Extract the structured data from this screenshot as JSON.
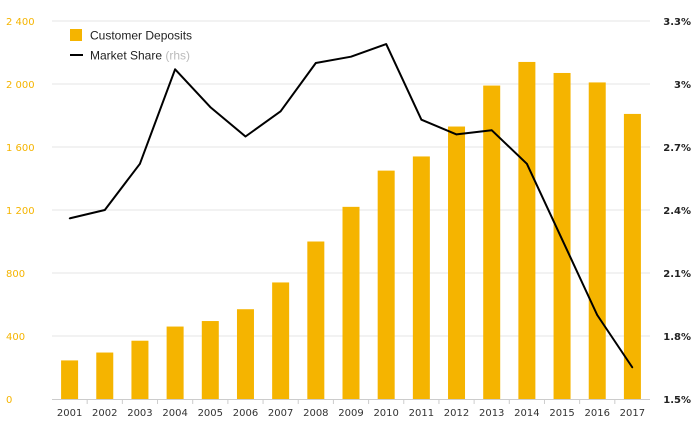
{
  "chart_data": {
    "type": "bar",
    "categories": [
      "2001",
      "2002",
      "2003",
      "2004",
      "2005",
      "2006",
      "2007",
      "2008",
      "2009",
      "2010",
      "2011",
      "2012",
      "2013",
      "2014",
      "2015",
      "2016",
      "2017"
    ],
    "series": [
      {
        "name": "Customer Deposits",
        "type": "bar",
        "axis": "left",
        "color": "#f5b400",
        "values": [
          245,
          295,
          370,
          460,
          495,
          570,
          740,
          1000,
          1220,
          1450,
          1540,
          1730,
          1990,
          2140,
          2070,
          2010,
          1810
        ]
      },
      {
        "name": "Market Share",
        "type": "line",
        "axis": "right",
        "color": "#000000",
        "values": [
          2.36,
          2.4,
          2.62,
          3.07,
          2.89,
          2.75,
          2.87,
          3.1,
          3.13,
          3.19,
          2.83,
          2.76,
          2.78,
          2.62,
          2.26,
          1.9,
          1.65
        ]
      }
    ],
    "legend": {
      "items": [
        {
          "label": "Customer Deposits",
          "color": "#f5b400",
          "marker": "square"
        },
        {
          "label": "Market Share",
          "suffix": "(rhs)",
          "color": "#000000",
          "marker": "line"
        }
      ],
      "position": "top-left"
    },
    "y_left": {
      "ylim": [
        0,
        2400
      ],
      "ticks": [
        0,
        400,
        800,
        1200,
        1600,
        2000,
        2400
      ],
      "tick_labels": [
        "0",
        "400",
        "800",
        "1 200",
        "1 600",
        "2 000",
        "2 400"
      ]
    },
    "y_right": {
      "ylim": [
        1.5,
        3.3
      ],
      "ticks": [
        1.5,
        1.8,
        2.1,
        2.4,
        2.7,
        3.0,
        3.3
      ],
      "tick_labels": [
        "1.5%",
        "1.8%",
        "2.1%",
        "2.4%",
        "2.7%",
        "3%",
        "3.3%"
      ]
    },
    "grid": true
  }
}
